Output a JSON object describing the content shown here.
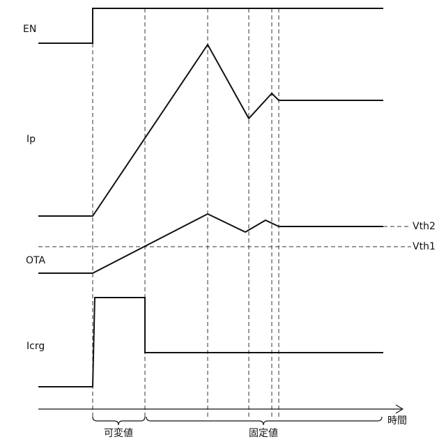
{
  "signals": [
    {
      "label": "EN"
    },
    {
      "label": "Ip"
    },
    {
      "label": "OTA"
    },
    {
      "label": "Icrg"
    }
  ],
  "thresholds": [
    {
      "label": "Vth2"
    },
    {
      "label": "Vth1"
    }
  ],
  "axis": {
    "label": "時間"
  },
  "periods": [
    {
      "label": "可変値"
    },
    {
      "label": "固定値"
    }
  ]
}
